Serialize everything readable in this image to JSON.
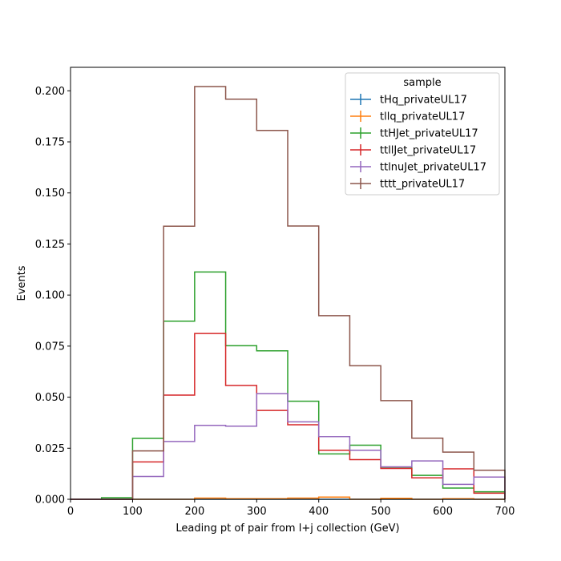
{
  "chart_data": {
    "type": "step-histogram",
    "xlabel": "Leading pt of pair from l+j collection (GeV)",
    "ylabel": "Events",
    "xlim": [
      0,
      700
    ],
    "ylim": [
      0,
      0.2115
    ],
    "xticks": [
      0,
      100,
      200,
      300,
      400,
      500,
      600,
      700
    ],
    "yticks": [
      0.0,
      0.025,
      0.05,
      0.075,
      0.1,
      0.125,
      0.15,
      0.175,
      0.2
    ],
    "ytick_labels": [
      "0.000",
      "0.025",
      "0.050",
      "0.075",
      "0.100",
      "0.125",
      "0.150",
      "0.175",
      "0.200"
    ],
    "grid": false,
    "legend": {
      "title": "sample",
      "placement": "top-right"
    },
    "bin_edges": [
      0,
      50,
      100,
      150,
      200,
      250,
      300,
      350,
      400,
      450,
      500,
      550,
      600,
      650,
      700
    ],
    "series": [
      {
        "name": "tHq_privateUL17",
        "color": "#1f77b4",
        "values": [
          0,
          0,
          0,
          0,
          0,
          0,
          0,
          0,
          0,
          0,
          0,
          0,
          0,
          0
        ]
      },
      {
        "name": "tllq_privateUL17",
        "color": "#ff7f0e",
        "values": [
          0,
          0,
          0,
          0,
          0.0006,
          0.0003,
          0.0003,
          0.0006,
          0.0011,
          0,
          0.0005,
          0,
          0.0003,
          0
        ]
      },
      {
        "name": "ttHJet_privateUL17",
        "color": "#2ca02c",
        "values": [
          0,
          0.0008,
          0.0298,
          0.0872,
          0.1113,
          0.0752,
          0.0727,
          0.048,
          0.0222,
          0.0265,
          0.0157,
          0.0117,
          0.0055,
          0.0037
        ]
      },
      {
        "name": "ttllJet_privateUL17",
        "color": "#d62728",
        "values": [
          0,
          0,
          0.0183,
          0.051,
          0.0812,
          0.0557,
          0.0435,
          0.0365,
          0.024,
          0.0194,
          0.0151,
          0.0105,
          0.0149,
          0.003
        ]
      },
      {
        "name": "ttlnuJet_privateUL17",
        "color": "#9467bd",
        "values": [
          0,
          0,
          0.0112,
          0.0283,
          0.0362,
          0.0358,
          0.0517,
          0.0379,
          0.0307,
          0.024,
          0.0159,
          0.0188,
          0.0073,
          0.0109
        ]
      },
      {
        "name": "tttt_privateUL17",
        "color": "#8c564b",
        "values": [
          0,
          0,
          0.0237,
          0.1337,
          0.2021,
          0.1959,
          0.1806,
          0.1338,
          0.0899,
          0.0654,
          0.0483,
          0.0299,
          0.0231,
          0.0142
        ]
      }
    ]
  }
}
